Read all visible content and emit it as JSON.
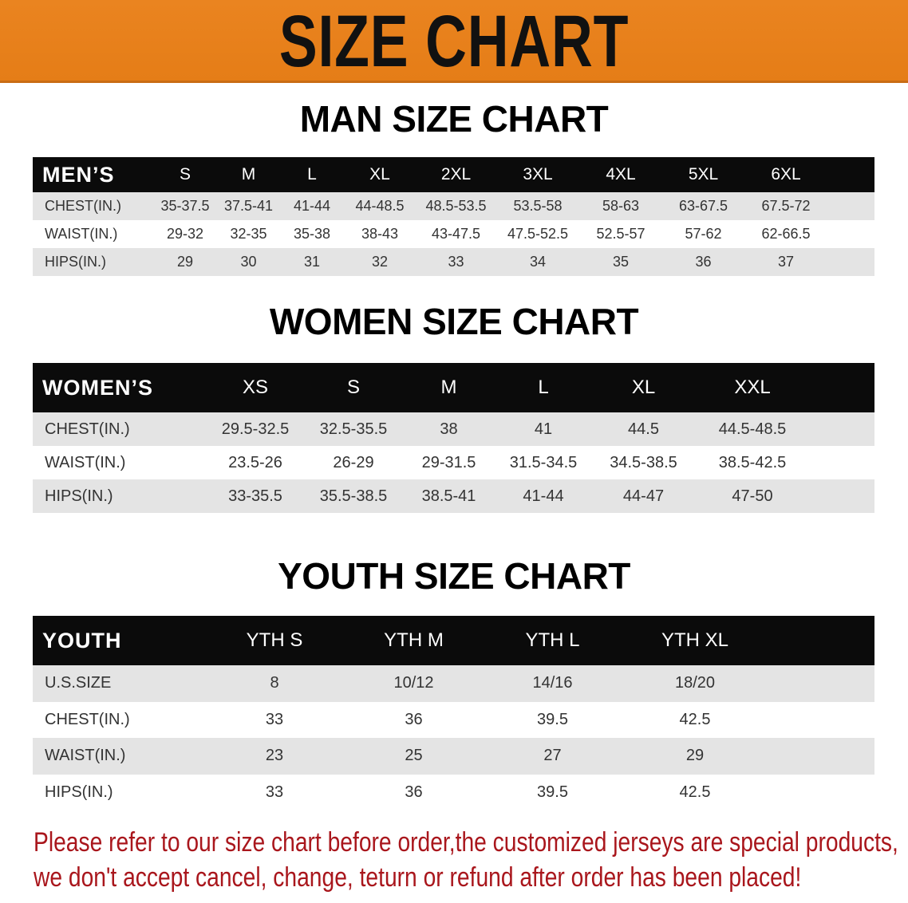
{
  "banner": {
    "title": "SIZE CHART",
    "color": "#e8811e"
  },
  "men": {
    "title": "MAN SIZE CHART",
    "header": [
      "MEN’S",
      "S",
      "M",
      "L",
      "XL",
      "2XL",
      "3XL",
      "4XL",
      "5XL",
      "6XL"
    ],
    "rows": [
      [
        "CHEST(IN.)",
        "35-37.5",
        "37.5-41",
        "41-44",
        "44-48.5",
        "48.5-53.5",
        "53.5-58",
        "58-63",
        "63-67.5",
        "67.5-72"
      ],
      [
        "WAIST(IN.)",
        "29-32",
        "32-35",
        "35-38",
        "38-43",
        "43-47.5",
        "47.5-52.5",
        "52.5-57",
        "57-62",
        "62-66.5"
      ],
      [
        "HIPS(IN.)",
        "29",
        "30",
        "31",
        "32",
        "33",
        "34",
        "35",
        "36",
        "37"
      ]
    ]
  },
  "women": {
    "title": "WOMEN SIZE CHART",
    "header": [
      "WOMEN’S",
      "XS",
      "S",
      "M",
      "L",
      "XL",
      "XXL"
    ],
    "rows": [
      [
        "CHEST(IN.)",
        "29.5-32.5",
        "32.5-35.5",
        "38",
        "41",
        "44.5",
        "44.5-48.5"
      ],
      [
        "WAIST(IN.)",
        "23.5-26",
        "26-29",
        "29-31.5",
        "31.5-34.5",
        "34.5-38.5",
        "38.5-42.5"
      ],
      [
        "HIPS(IN.)",
        "33-35.5",
        "35.5-38.5",
        "38.5-41",
        "41-44",
        "44-47",
        "47-50"
      ]
    ]
  },
  "youth": {
    "title": "YOUTH SIZE CHART",
    "header": [
      "YOUTH",
      "YTH S",
      "YTH M",
      "YTH L",
      "YTH XL"
    ],
    "rows": [
      [
        "U.S.SIZE",
        "8",
        "10/12",
        "14/16",
        "18/20"
      ],
      [
        "CHEST(IN.)",
        "33",
        "36",
        "39.5",
        "42.5"
      ],
      [
        "WAIST(IN.)",
        "23",
        "25",
        "27",
        "29"
      ],
      [
        "HIPS(IN.)",
        "33",
        "36",
        "39.5",
        "42.5"
      ]
    ]
  },
  "note": {
    "line1": "Please refer to our size chart before order,the customized jerseys are special products,",
    "line2": "we don't accept cancel, change, teturn or refund after order has been placed!",
    "color": "#a9161c"
  }
}
